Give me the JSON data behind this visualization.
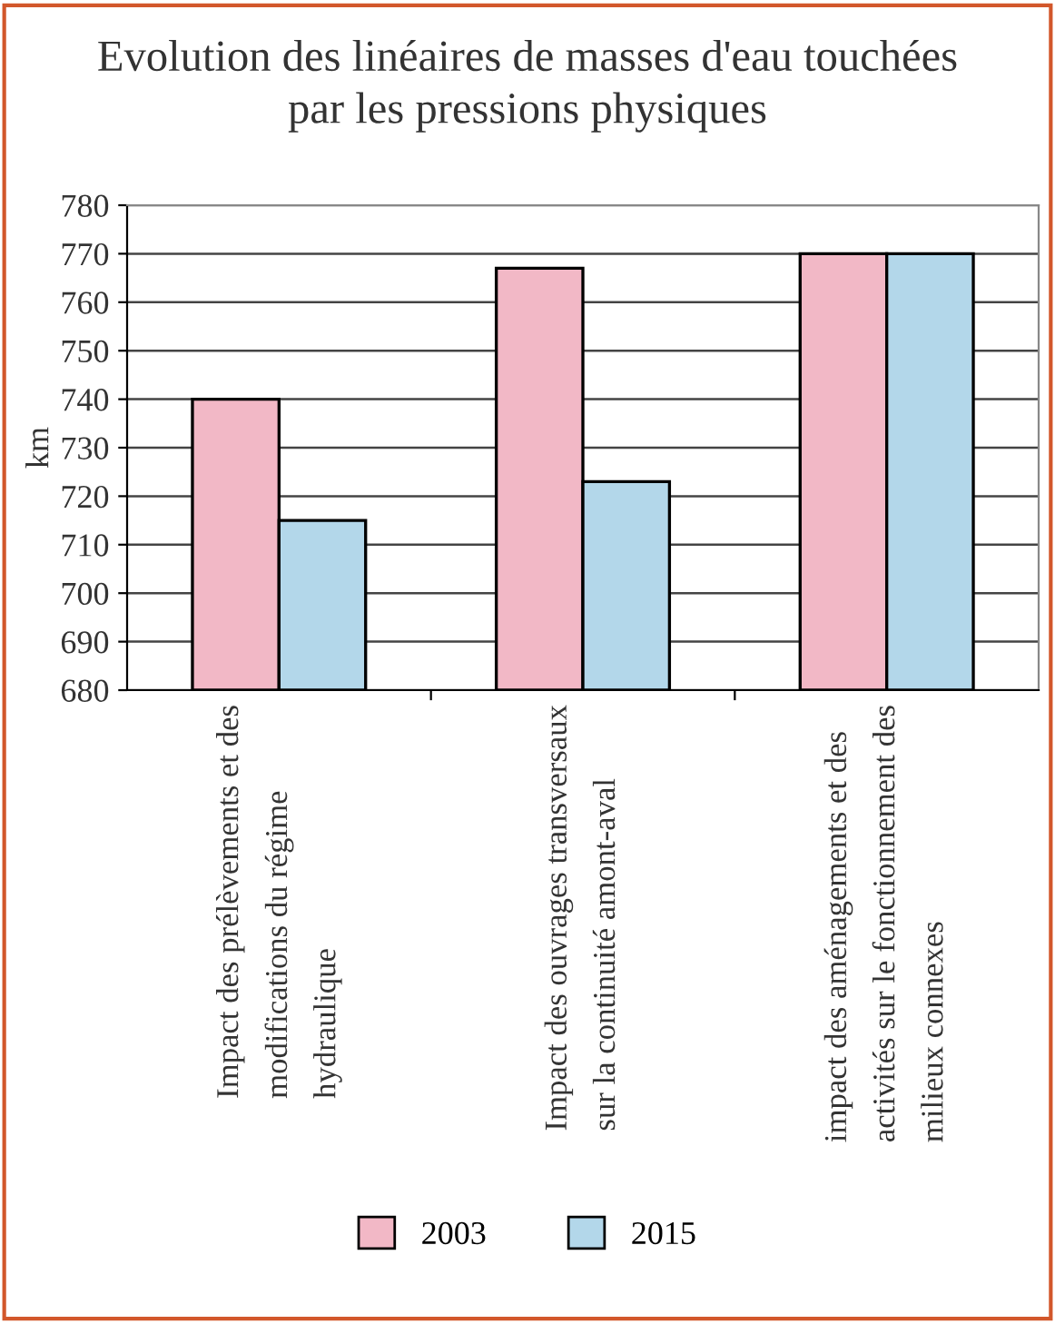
{
  "chart_data": {
    "type": "bar",
    "title": "Evolution des linéaires de masses d'eau touchées\npar les pressions physiques",
    "ylabel": "km",
    "categories": [
      "Impact des prélèvements et des\nmodifications du régime\nhydraulique",
      "Impact des ouvrages transversaux\nsur la continuité amont-aval",
      "impact des aménagements et des\nactivités sur le fonctionnement des\nmilieux connexes"
    ],
    "series": [
      {
        "name": "2003",
        "color": "#f2b8c6",
        "values": [
          740,
          767,
          770
        ]
      },
      {
        "name": "2015",
        "color": "#b3d7ea",
        "values": [
          715,
          723,
          770
        ]
      }
    ],
    "ylim": [
      680,
      780
    ],
    "yticks": [
      680,
      690,
      700,
      710,
      720,
      730,
      740,
      750,
      760,
      770,
      780
    ],
    "grid": "y",
    "legend": "bottom"
  }
}
